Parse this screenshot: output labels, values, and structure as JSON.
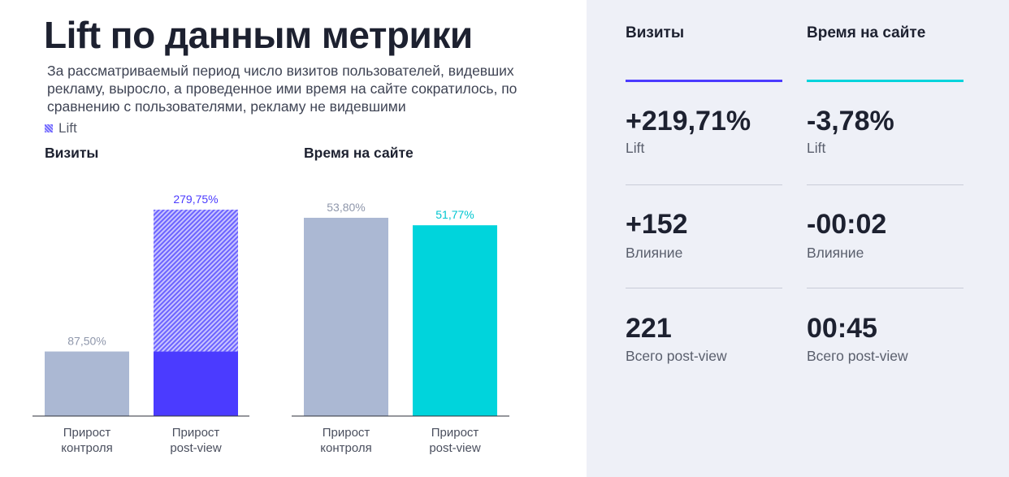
{
  "header": {
    "title": "Lift по данным метрики",
    "subtitle": "За рассматриваемый период число визитов пользователей, видевших рекламу, выросло, а проведенное ими время на сайте сократилось, по сравнению с пользователями, рекламу не видевшими"
  },
  "legend": {
    "lift_label": "Lift"
  },
  "colors": {
    "control": "#abb8d3",
    "visits_accent": "#4b3bff",
    "lift_hatch": "#6c63ff",
    "time_accent": "#00d4dc",
    "panel_bg": "#eef0f7",
    "visits_label": "#4b3bff",
    "time_label": "#00c6d0",
    "control_label": "#8f97ab"
  },
  "chart_data": [
    {
      "type": "bar",
      "title": "Визиты",
      "categories": [
        "Прирост контроля",
        "Прирост post-view"
      ],
      "category_lines": [
        [
          "Прирост",
          "контроля"
        ],
        [
          "Прирост",
          "post-view"
        ]
      ],
      "values": [
        87.5,
        279.75
      ],
      "value_labels": [
        "87,50%",
        "279,75%"
      ],
      "stacked_base_for_post_view": 87.5,
      "lift_segment": 192.25,
      "ylim": [
        0,
        300
      ]
    },
    {
      "type": "bar",
      "title": "Время на сайте",
      "categories": [
        "Прирост контроля",
        "Прирост post-view"
      ],
      "category_lines": [
        [
          "Прирост",
          "контроля"
        ],
        [
          "Прирост",
          "post-view"
        ]
      ],
      "values": [
        53.8,
        51.77
      ],
      "value_labels": [
        "53,80%",
        "51,77%"
      ],
      "ylim": [
        0,
        60
      ]
    }
  ],
  "panel": {
    "visits": {
      "heading": "Визиты",
      "lift_value": "+219,71%",
      "lift_label": "Lift",
      "impact_value": "+152",
      "impact_label": "Влияние",
      "total_value": "221",
      "total_label": "Всего post-view"
    },
    "time": {
      "heading": "Время на сайте",
      "lift_value": "-3,78%",
      "lift_label": "Lift",
      "impact_value": "-00:02",
      "impact_label": "Влияние",
      "total_value": "00:45",
      "total_label": "Всего post-view"
    }
  }
}
